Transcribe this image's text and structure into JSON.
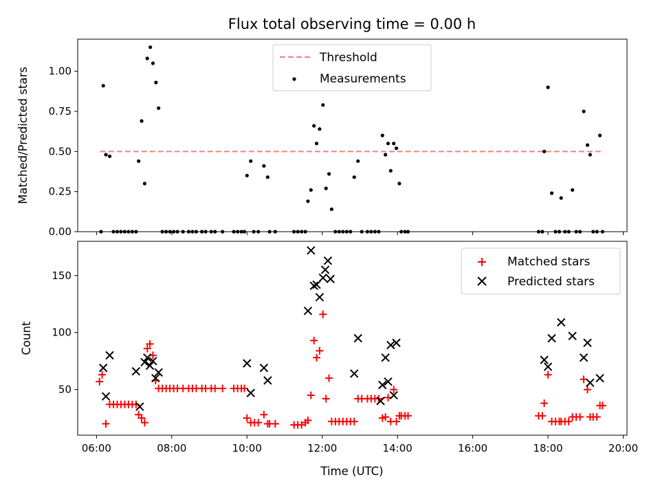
{
  "chart_data": [
    {
      "type": "scatter",
      "title": "Flux total observing time = 0.00 h",
      "ylabel": "Matched/Predicted stars",
      "xlim": [
        5.5,
        20.1
      ],
      "ylim": [
        0,
        1.2
      ],
      "yticks": [
        "0.00",
        "0.25",
        "0.50",
        "0.75",
        "1.00"
      ],
      "legend_position": "upper-center",
      "colors": {
        "threshold": "#f08080",
        "measurements": "#000000"
      },
      "threshold": {
        "name": "Threshold",
        "value": 0.5,
        "x_range": [
          6.1,
          19.4
        ],
        "style": "dashed"
      },
      "series": [
        {
          "name": "Measurements",
          "points": [
            [
              6.12,
              0.0
            ],
            [
              6.18,
              0.91
            ],
            [
              6.25,
              0.48
            ],
            [
              6.35,
              0.47
            ],
            [
              6.45,
              0.0
            ],
            [
              6.55,
              0.0
            ],
            [
              6.65,
              0.0
            ],
            [
              6.75,
              0.0
            ],
            [
              6.85,
              0.0
            ],
            [
              6.95,
              0.0
            ],
            [
              7.05,
              0.0
            ],
            [
              7.12,
              0.44
            ],
            [
              7.2,
              0.69
            ],
            [
              7.28,
              0.3
            ],
            [
              7.35,
              1.08
            ],
            [
              7.43,
              1.15
            ],
            [
              7.5,
              1.05
            ],
            [
              7.58,
              0.93
            ],
            [
              7.65,
              0.77
            ],
            [
              7.75,
              0.0
            ],
            [
              7.85,
              0.0
            ],
            [
              7.95,
              0.0
            ],
            [
              8.05,
              0.0
            ],
            [
              8.15,
              0.0
            ],
            [
              8.3,
              0.0
            ],
            [
              8.45,
              0.0
            ],
            [
              8.55,
              0.0
            ],
            [
              8.65,
              0.0
            ],
            [
              8.8,
              0.0
            ],
            [
              8.9,
              0.0
            ],
            [
              9.05,
              0.0
            ],
            [
              9.15,
              0.0
            ],
            [
              9.35,
              0.0
            ],
            [
              9.65,
              0.0
            ],
            [
              9.75,
              0.0
            ],
            [
              9.85,
              0.0
            ],
            [
              9.93,
              0.0
            ],
            [
              10.0,
              0.35
            ],
            [
              10.1,
              0.44
            ],
            [
              10.18,
              0.0
            ],
            [
              10.3,
              0.0
            ],
            [
              10.45,
              0.41
            ],
            [
              10.55,
              0.34
            ],
            [
              10.6,
              0.0
            ],
            [
              10.75,
              0.0
            ],
            [
              11.25,
              0.0
            ],
            [
              11.35,
              0.0
            ],
            [
              11.45,
              0.0
            ],
            [
              11.55,
              0.0
            ],
            [
              11.62,
              0.19
            ],
            [
              11.7,
              0.26
            ],
            [
              11.78,
              0.66
            ],
            [
              11.85,
              0.55
            ],
            [
              11.93,
              0.64
            ],
            [
              12.02,
              0.79
            ],
            [
              12.1,
              0.27
            ],
            [
              12.18,
              0.36
            ],
            [
              12.25,
              0.14
            ],
            [
              12.35,
              0.0
            ],
            [
              12.45,
              0.0
            ],
            [
              12.55,
              0.0
            ],
            [
              12.65,
              0.0
            ],
            [
              12.75,
              0.0
            ],
            [
              12.85,
              0.34
            ],
            [
              12.95,
              0.44
            ],
            [
              13.05,
              0.0
            ],
            [
              13.2,
              0.0
            ],
            [
              13.3,
              0.0
            ],
            [
              13.4,
              0.0
            ],
            [
              13.5,
              0.0
            ],
            [
              13.6,
              0.6
            ],
            [
              13.68,
              0.48
            ],
            [
              13.75,
              0.55
            ],
            [
              13.82,
              0.38
            ],
            [
              13.9,
              0.55
            ],
            [
              13.97,
              0.52
            ],
            [
              14.05,
              0.3
            ],
            [
              14.1,
              0.0
            ],
            [
              14.2,
              0.0
            ],
            [
              14.28,
              0.0
            ],
            [
              17.75,
              0.0
            ],
            [
              17.85,
              0.0
            ],
            [
              17.9,
              0.5
            ],
            [
              18.0,
              0.9
            ],
            [
              18.1,
              0.24
            ],
            [
              18.2,
              0.0
            ],
            [
              18.3,
              0.0
            ],
            [
              18.35,
              0.21
            ],
            [
              18.45,
              0.0
            ],
            [
              18.55,
              0.0
            ],
            [
              18.65,
              0.26
            ],
            [
              18.75,
              0.0
            ],
            [
              18.85,
              0.0
            ],
            [
              18.95,
              0.75
            ],
            [
              19.05,
              0.54
            ],
            [
              19.12,
              0.48
            ],
            [
              19.2,
              0.0
            ],
            [
              19.3,
              0.0
            ],
            [
              19.38,
              0.6
            ],
            [
              19.45,
              0.0
            ]
          ]
        }
      ]
    },
    {
      "type": "scatter",
      "title": "",
      "xlabel": "Time (UTC)",
      "ylabel": "Count",
      "xlim": [
        5.5,
        20.1
      ],
      "ylim": [
        10,
        180
      ],
      "yticks": [
        "50",
        "100",
        "150"
      ],
      "xticks": [
        "06:00",
        "08:00",
        "10:00",
        "12:00",
        "14:00",
        "16:00",
        "18:00",
        "20:00"
      ],
      "legend_position": "upper-right",
      "colors": {
        "matched": "#ff0000",
        "predicted": "#000000"
      },
      "series": [
        {
          "name": "Matched stars",
          "marker": "plus",
          "points": [
            [
              6.08,
              57
            ],
            [
              6.15,
              63
            ],
            [
              6.25,
              20
            ],
            [
              6.35,
              37
            ],
            [
              6.45,
              37
            ],
            [
              6.55,
              37
            ],
            [
              6.65,
              37
            ],
            [
              6.75,
              37
            ],
            [
              6.85,
              37
            ],
            [
              6.95,
              37
            ],
            [
              7.05,
              37
            ],
            [
              7.12,
              28
            ],
            [
              7.2,
              25
            ],
            [
              7.28,
              21
            ],
            [
              7.35,
              86
            ],
            [
              7.42,
              90
            ],
            [
              7.5,
              80
            ],
            [
              7.57,
              58
            ],
            [
              7.65,
              51
            ],
            [
              7.75,
              51
            ],
            [
              7.85,
              51
            ],
            [
              7.95,
              51
            ],
            [
              8.05,
              51
            ],
            [
              8.15,
              51
            ],
            [
              8.3,
              51
            ],
            [
              8.45,
              51
            ],
            [
              8.55,
              51
            ],
            [
              8.65,
              51
            ],
            [
              8.8,
              51
            ],
            [
              8.9,
              51
            ],
            [
              9.05,
              51
            ],
            [
              9.15,
              51
            ],
            [
              9.35,
              51
            ],
            [
              9.65,
              51
            ],
            [
              9.75,
              51
            ],
            [
              9.85,
              51
            ],
            [
              9.93,
              51
            ],
            [
              10.0,
              25
            ],
            [
              10.1,
              21
            ],
            [
              10.2,
              21
            ],
            [
              10.3,
              21
            ],
            [
              10.45,
              28
            ],
            [
              10.55,
              20
            ],
            [
              10.6,
              20
            ],
            [
              10.75,
              20
            ],
            [
              11.25,
              19
            ],
            [
              11.35,
              19
            ],
            [
              11.45,
              19
            ],
            [
              11.55,
              21
            ],
            [
              11.62,
              23
            ],
            [
              11.7,
              45
            ],
            [
              11.78,
              93
            ],
            [
              11.85,
              78
            ],
            [
              11.93,
              84
            ],
            [
              12.02,
              116
            ],
            [
              12.1,
              42
            ],
            [
              12.18,
              60
            ],
            [
              12.25,
              22
            ],
            [
              12.35,
              22
            ],
            [
              12.45,
              22
            ],
            [
              12.55,
              22
            ],
            [
              12.65,
              22
            ],
            [
              12.75,
              22
            ],
            [
              12.85,
              22
            ],
            [
              12.95,
              42
            ],
            [
              13.05,
              42
            ],
            [
              13.2,
              42
            ],
            [
              13.3,
              42
            ],
            [
              13.4,
              42
            ],
            [
              13.5,
              42
            ],
            [
              13.6,
              25
            ],
            [
              13.68,
              26
            ],
            [
              13.75,
              43
            ],
            [
              13.82,
              22
            ],
            [
              13.9,
              50
            ],
            [
              13.97,
              22
            ],
            [
              14.05,
              27
            ],
            [
              14.1,
              27
            ],
            [
              14.2,
              27
            ],
            [
              14.28,
              27
            ],
            [
              17.75,
              27
            ],
            [
              17.85,
              27
            ],
            [
              17.9,
              38
            ],
            [
              18.0,
              63
            ],
            [
              18.1,
              22
            ],
            [
              18.2,
              22
            ],
            [
              18.3,
              22
            ],
            [
              18.35,
              22
            ],
            [
              18.45,
              22
            ],
            [
              18.55,
              22
            ],
            [
              18.65,
              26
            ],
            [
              18.75,
              26
            ],
            [
              18.85,
              26
            ],
            [
              18.95,
              59
            ],
            [
              19.05,
              50
            ],
            [
              19.12,
              26
            ],
            [
              19.2,
              26
            ],
            [
              19.3,
              26
            ],
            [
              19.38,
              36
            ],
            [
              19.45,
              36
            ]
          ]
        },
        {
          "name": "Predicted stars",
          "marker": "x",
          "points": [
            [
              6.18,
              69
            ],
            [
              6.25,
              44
            ],
            [
              6.35,
              80
            ],
            [
              7.05,
              66
            ],
            [
              7.15,
              35
            ],
            [
              7.28,
              74
            ],
            [
              7.35,
              78
            ],
            [
              7.42,
              71
            ],
            [
              7.5,
              75
            ],
            [
              7.57,
              60
            ],
            [
              7.65,
              65
            ],
            [
              10.0,
              73
            ],
            [
              10.1,
              47
            ],
            [
              10.45,
              69
            ],
            [
              10.55,
              58
            ],
            [
              11.62,
              119
            ],
            [
              11.7,
              172
            ],
            [
              11.78,
              141
            ],
            [
              11.85,
              142
            ],
            [
              11.93,
              131
            ],
            [
              12.02,
              148
            ],
            [
              12.08,
              155
            ],
            [
              12.15,
              163
            ],
            [
              12.22,
              147
            ],
            [
              12.85,
              64
            ],
            [
              12.95,
              95
            ],
            [
              13.55,
              40
            ],
            [
              13.6,
              54
            ],
            [
              13.68,
              78
            ],
            [
              13.75,
              57
            ],
            [
              13.82,
              89
            ],
            [
              13.9,
              45
            ],
            [
              13.97,
              91
            ],
            [
              17.9,
              76
            ],
            [
              18.0,
              70
            ],
            [
              18.1,
              95
            ],
            [
              18.35,
              109
            ],
            [
              18.65,
              97
            ],
            [
              18.95,
              78
            ],
            [
              19.05,
              91
            ],
            [
              19.12,
              56
            ],
            [
              19.38,
              60
            ]
          ]
        }
      ]
    }
  ]
}
